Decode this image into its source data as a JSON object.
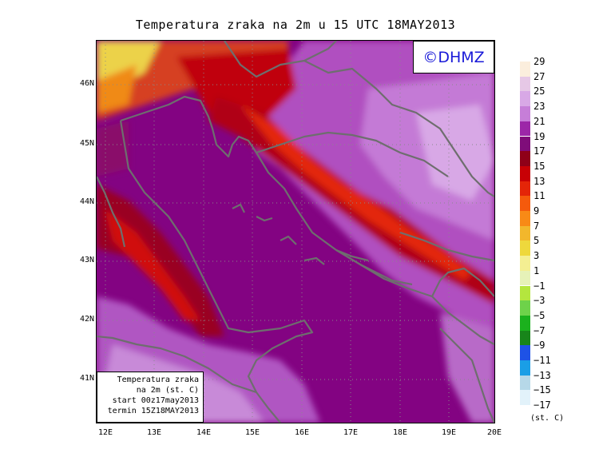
{
  "title": "Temperatura zraka na 2m u 15 UTC 18MAY2013",
  "logo": "©DHMZ",
  "infobox": {
    "line1": "Temperatura zraka",
    "line2": "na 2m (st. C)",
    "line3": "start 00z17may2013",
    "line4": "termin 15Z18MAY2013"
  },
  "lat_labels": [
    "46N",
    "45N",
    "44N",
    "43N",
    "42N",
    "41N"
  ],
  "lon_labels": [
    "12E",
    "13E",
    "14E",
    "15E",
    "16E",
    "17E",
    "18E",
    "19E",
    "20E"
  ],
  "legend": {
    "labels": [
      "29",
      "27",
      "25",
      "23",
      "21",
      "19",
      "17",
      "15",
      "13",
      "11",
      "9",
      "7",
      "5",
      "3",
      "1",
      "−1",
      "−3",
      "−5",
      "−7",
      "−9",
      "−11",
      "−13",
      "−15",
      "−17"
    ],
    "colors": [
      "#fbeedd",
      "#e6c8e6",
      "#d8a8e6",
      "#c67ed8",
      "#9c27a8",
      "#7f0d7a",
      "#8f0018",
      "#c80005",
      "#e42508",
      "#f55a0c",
      "#f88a16",
      "#f2b72c",
      "#eed83c",
      "#f4ef92",
      "#e6f2b8",
      "#b4e63e",
      "#6ed24a",
      "#1bb11d",
      "#18851a",
      "#1e52e6",
      "#1a9ee6",
      "#b6d8e8",
      "#e2f2fa"
    ],
    "unit": "(st. C)"
  },
  "colors": {
    "sea": "#830382",
    "coast": "#6e6e6e",
    "logo_text": "#1a1ad8"
  }
}
